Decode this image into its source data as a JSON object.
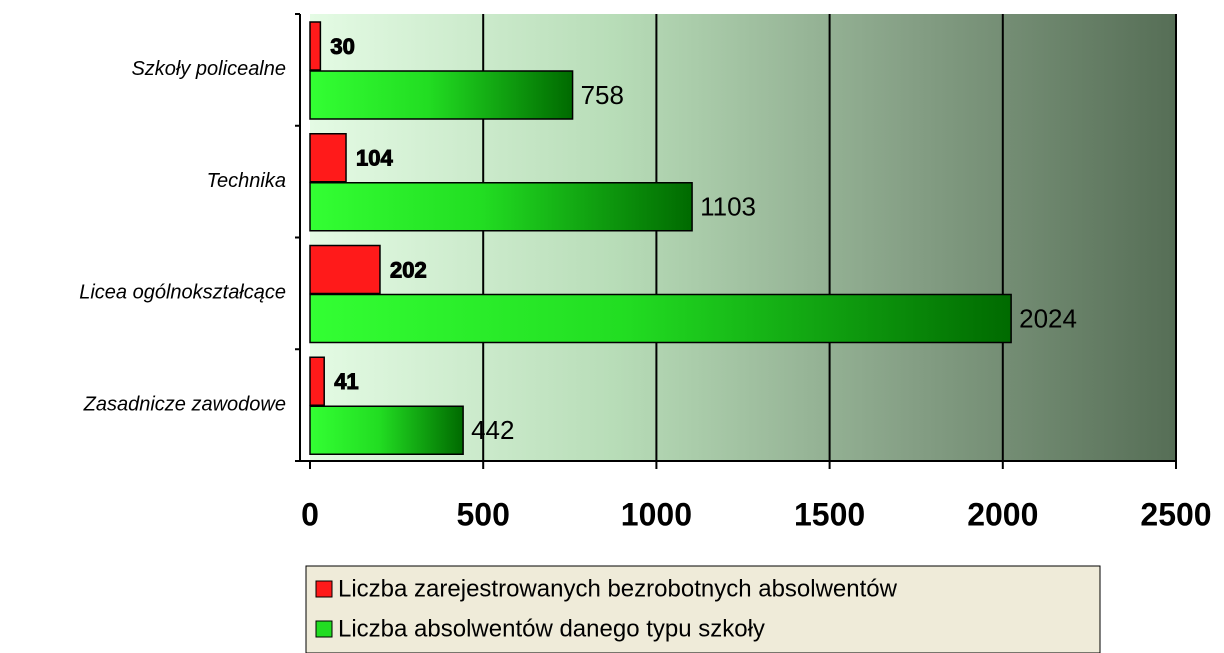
{
  "chart_data": {
    "type": "hbar",
    "categories": [
      "Szkoły policealne",
      "Technika",
      "Licea ogólnokształcące",
      "Zasadnicze zawodowe"
    ],
    "series": [
      {
        "name": "Liczba zarejestrowanych bezrobotnych absolwentów",
        "color": "#ff1a1a",
        "values": [
          30,
          104,
          202,
          41
        ]
      },
      {
        "name": "Liczba absolwentów danego typu szkoły",
        "color": "#22dd22",
        "values": [
          758,
          1103,
          2024,
          442
        ]
      }
    ],
    "xlim": [
      0,
      2500
    ],
    "xticks": [
      0,
      500,
      1000,
      1500,
      2000,
      2500
    ],
    "grid": true,
    "legend": "bottom"
  }
}
